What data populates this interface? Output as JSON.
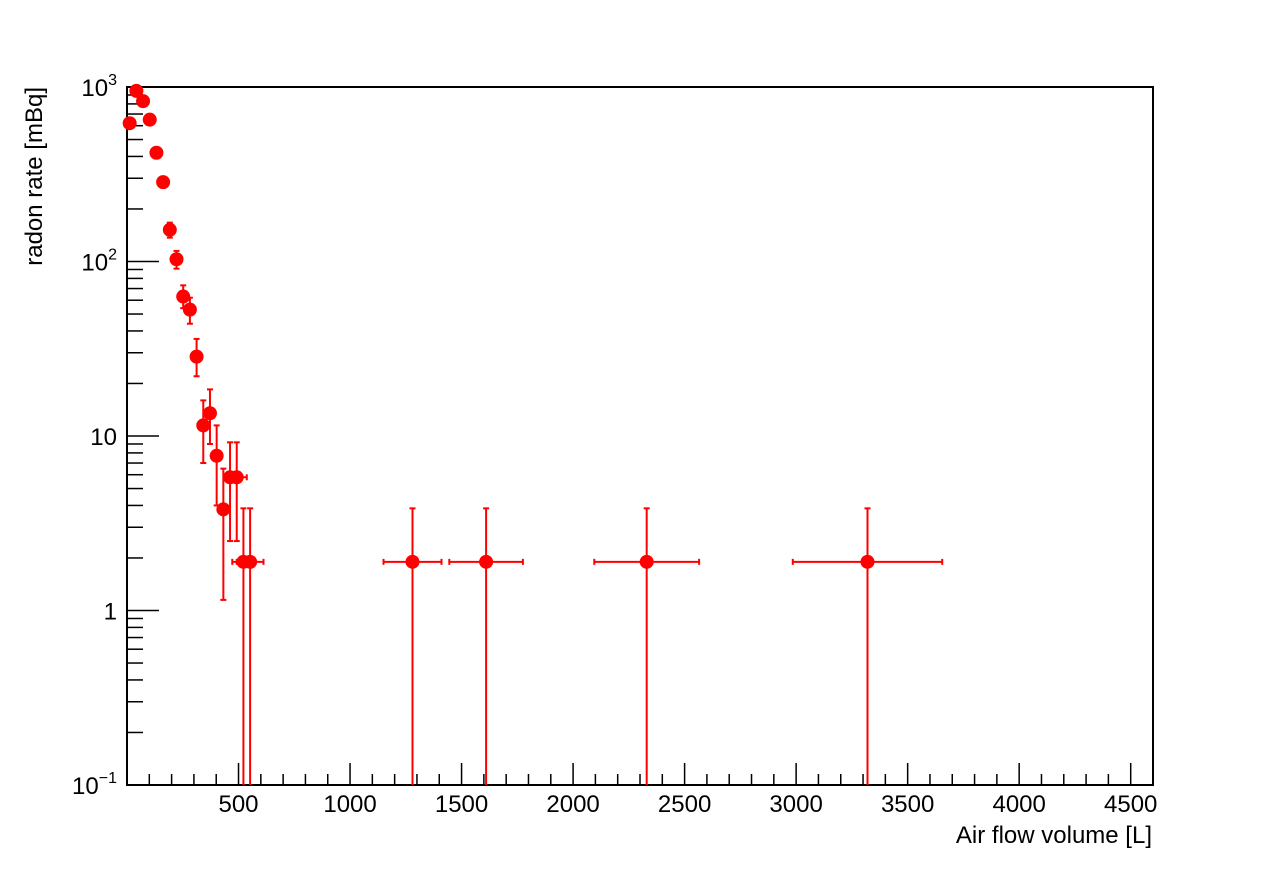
{
  "chart_data": {
    "type": "scatter",
    "xlabel": "Air flow volume [L]",
    "ylabel": "radon rate [mBq]",
    "xlim": [
      0,
      4600
    ],
    "ylim": [
      0.1,
      1000
    ],
    "y_scale": "log",
    "x_ticks": [
      {
        "value": 500,
        "label": "500"
      },
      {
        "value": 1000,
        "label": "1000"
      },
      {
        "value": 1500,
        "label": "1500"
      },
      {
        "value": 2000,
        "label": "2000"
      },
      {
        "value": 2500,
        "label": "2500"
      },
      {
        "value": 3000,
        "label": "3000"
      },
      {
        "value": 3500,
        "label": "3500"
      },
      {
        "value": 4000,
        "label": "4000"
      },
      {
        "value": 4500,
        "label": "4500"
      }
    ],
    "y_ticks": [
      {
        "value": 0.1,
        "base": "10",
        "exp": "−1"
      },
      {
        "value": 1,
        "base": "1",
        "exp": ""
      },
      {
        "value": 10,
        "base": "10",
        "exp": ""
      },
      {
        "value": 100,
        "base": "10",
        "exp": "2"
      },
      {
        "value": 1000,
        "base": "10",
        "exp": "3"
      }
    ],
    "grid": false,
    "marker_color": "#ff0000",
    "points": [
      {
        "x": 12,
        "y": 620,
        "xerr": 0,
        "ylow": 580,
        "yhigh": 660
      },
      {
        "x": 42,
        "y": 950,
        "xerr": 0,
        "ylow": 900,
        "yhigh": 1000
      },
      {
        "x": 72,
        "y": 830,
        "xerr": 0,
        "ylow": 780,
        "yhigh": 880
      },
      {
        "x": 102,
        "y": 650,
        "xerr": 0,
        "ylow": 610,
        "yhigh": 690
      },
      {
        "x": 132,
        "y": 420,
        "xerr": 0,
        "ylow": 390,
        "yhigh": 450
      },
      {
        "x": 162,
        "y": 285,
        "xerr": 0,
        "ylow": 265,
        "yhigh": 305
      },
      {
        "x": 192,
        "y": 152,
        "xerr": 10,
        "ylow": 137,
        "yhigh": 167
      },
      {
        "x": 222,
        "y": 103,
        "xerr": 10,
        "ylow": 91,
        "yhigh": 115
      },
      {
        "x": 252,
        "y": 63,
        "xerr": 15,
        "ylow": 54,
        "yhigh": 73
      },
      {
        "x": 282,
        "y": 53,
        "xerr": 15,
        "ylow": 44,
        "yhigh": 62
      },
      {
        "x": 312,
        "y": 28.5,
        "xerr": 12,
        "ylow": 22,
        "yhigh": 36
      },
      {
        "x": 342,
        "y": 11.5,
        "xerr": 12,
        "ylow": 7,
        "yhigh": 16
      },
      {
        "x": 372,
        "y": 13.5,
        "xerr": 15,
        "ylow": 9,
        "yhigh": 18.5
      },
      {
        "x": 402,
        "y": 7.7,
        "xerr": 15,
        "ylow": 4,
        "yhigh": 11.5
      },
      {
        "x": 432,
        "y": 3.8,
        "xerr": 20,
        "ylow": 1.15,
        "yhigh": 6.5
      },
      {
        "x": 462,
        "y": 5.8,
        "xerr": 22,
        "ylow": 2.5,
        "yhigh": 9.2
      },
      {
        "x": 492,
        "y": 5.8,
        "xerr": 45,
        "ylow": 2.5,
        "yhigh": 9.2
      },
      {
        "x": 522,
        "y": 1.9,
        "xerr": 50,
        "ylow": 0.1,
        "yhigh": 3.85
      },
      {
        "x": 552,
        "y": 1.9,
        "xerr": 60,
        "ylow": 0.1,
        "yhigh": 3.85
      },
      {
        "x": 1280,
        "y": 1.9,
        "xerr": 130,
        "ylow": 0.1,
        "yhigh": 3.85
      },
      {
        "x": 1610,
        "y": 1.9,
        "xerr": 165,
        "ylow": 0.1,
        "yhigh": 3.85
      },
      {
        "x": 2330,
        "y": 1.9,
        "xerr": 235,
        "ylow": 0.1,
        "yhigh": 3.85
      },
      {
        "x": 3320,
        "y": 1.9,
        "xerr": 335,
        "ylow": 0.1,
        "yhigh": 3.85
      }
    ]
  }
}
